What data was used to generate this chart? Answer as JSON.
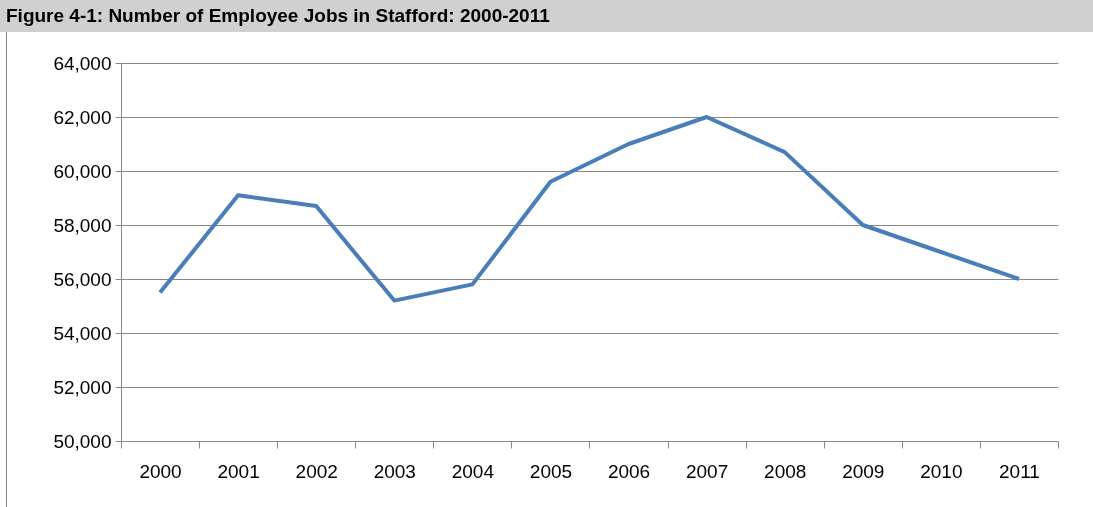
{
  "chart_data": {
    "type": "line",
    "title": "Figure 4-1: Number of Employee Jobs in Stafford: 2000-2011",
    "categories": [
      "2000",
      "2001",
      "2002",
      "2003",
      "2004",
      "2005",
      "2006",
      "2007",
      "2008",
      "2009",
      "2010",
      "2011"
    ],
    "series": [
      {
        "color": "#4a7ebb",
        "values": [
          55500,
          59100,
          58700,
          55200,
          55800,
          59600,
          61000,
          62000,
          60700,
          58000,
          57000,
          56000
        ]
      }
    ],
    "ylim": [
      50000,
      64000
    ],
    "yticks": [
      {
        "value": 50000,
        "label": "50,000"
      },
      {
        "value": 52000,
        "label": "52,000"
      },
      {
        "value": 54000,
        "label": "54,000"
      },
      {
        "value": 56000,
        "label": "56,000"
      },
      {
        "value": 58000,
        "label": "58,000"
      },
      {
        "value": 60000,
        "label": "60,000"
      },
      {
        "value": 62000,
        "label": "62,000"
      },
      {
        "value": 64000,
        "label": "64,000"
      }
    ],
    "grid": "y",
    "legend": false,
    "marker": "none",
    "line_style": "solid"
  }
}
